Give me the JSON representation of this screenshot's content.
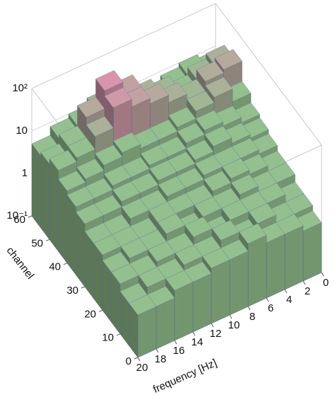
{
  "chart_data": {
    "type": "bar3d",
    "xlabel": "frequency [Hz]",
    "ylabel": "channel",
    "frequency_bins": [
      0,
      2,
      4,
      6,
      8,
      10,
      12,
      14,
      16,
      18,
      20
    ],
    "channel_bins": [
      0,
      5,
      10,
      15,
      20,
      25,
      30,
      35,
      40,
      45,
      50,
      55,
      60
    ],
    "values": [
      [
        1.5,
        2,
        2,
        3,
        2,
        2,
        1.5,
        1.5,
        1,
        1
      ],
      [
        2,
        2,
        3,
        2,
        3,
        2,
        2,
        1.5,
        1.5,
        1
      ],
      [
        2,
        3,
        3,
        3,
        2,
        3,
        2,
        2,
        1.5,
        1.5
      ],
      [
        3,
        3,
        4,
        3,
        3,
        2,
        3,
        2,
        2,
        1.5
      ],
      [
        3,
        4,
        5,
        4,
        3,
        3,
        3,
        2,
        2,
        2
      ],
      [
        4,
        5,
        5,
        5,
        4,
        4,
        3,
        3,
        2,
        2
      ],
      [
        5,
        6,
        8,
        6,
        5,
        5,
        4,
        4,
        3,
        3
      ],
      [
        6,
        8,
        10,
        8,
        6,
        6,
        5,
        5,
        4,
        4
      ],
      [
        10,
        20,
        15,
        10,
        8,
        8,
        10,
        8,
        6,
        5
      ],
      [
        30,
        25,
        15,
        20,
        30,
        40,
        60,
        20,
        10,
        8
      ],
      [
        20,
        15,
        10,
        15,
        20,
        40,
        80,
        30,
        10,
        6
      ],
      [
        8,
        10,
        8,
        6,
        6,
        10,
        15,
        10,
        8,
        5
      ]
    ],
    "xlim": [
      0,
      20
    ],
    "xticks": [
      0,
      2,
      4,
      6,
      8,
      10,
      12,
      14,
      16,
      18,
      20
    ],
    "ylim": [
      0,
      60
    ],
    "yticks": [
      0,
      10,
      20,
      30,
      40,
      50,
      60
    ],
    "zlim": [
      0.1,
      100
    ],
    "zticks": [
      {
        "value": 0.1,
        "label": "10⁻¹"
      },
      1,
      10,
      {
        "value": 100,
        "label": "10²"
      }
    ],
    "zscale": "log",
    "color": "#93c08e",
    "high_color": "#e08fae",
    "floor_color": "#2b2b3c"
  }
}
